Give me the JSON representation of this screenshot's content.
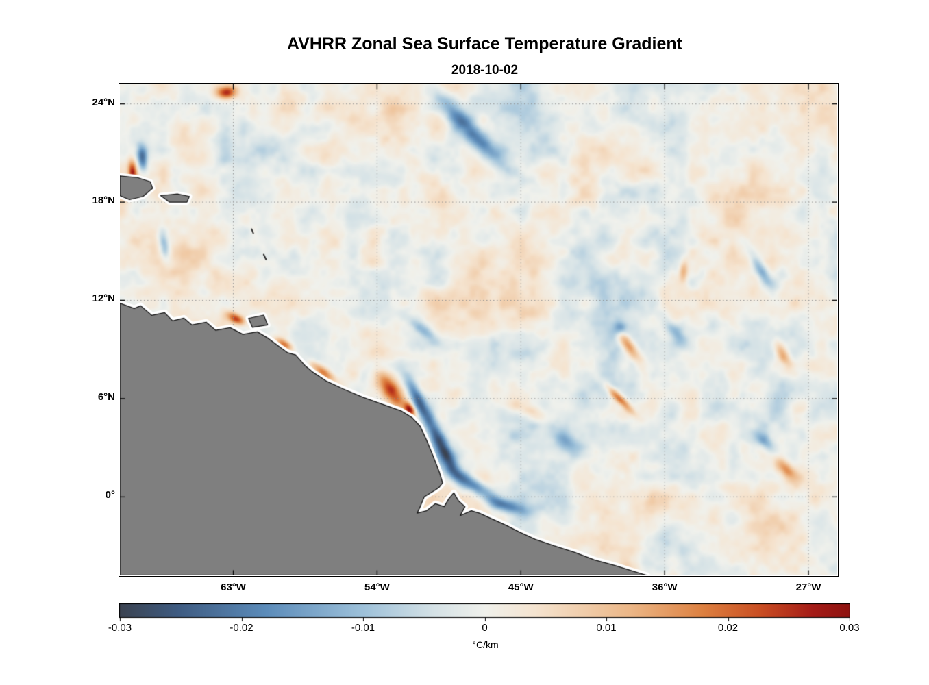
{
  "chart_data": {
    "type": "heatmap",
    "title": "AVHRR Zonal Sea Surface Temperature Gradient",
    "date": "2018-10-02",
    "xlabel": "",
    "ylabel": "",
    "x_range": [
      -70.1,
      -25.2
    ],
    "y_range": [
      -4.8,
      25.2
    ],
    "x_ticks": [
      {
        "label": "63°W",
        "lon": -63
      },
      {
        "label": "54°W",
        "lon": -54
      },
      {
        "label": "45°W",
        "lon": -45
      },
      {
        "label": "36°W",
        "lon": -36
      },
      {
        "label": "27°W",
        "lon": -27
      }
    ],
    "y_ticks": [
      {
        "label": "24°N",
        "lat": 24
      },
      {
        "label": "18°N",
        "lat": 18
      },
      {
        "label": "12°N",
        "lat": 12
      },
      {
        "label": "6°N",
        "lat": 6
      },
      {
        "label": "0°",
        "lat": 0
      }
    ],
    "grid": {
      "color": "#8f8f8f",
      "dash": [
        1.5,
        3.5
      ]
    },
    "colorbar": {
      "label": "°C/km",
      "min": -0.03,
      "max": 0.03,
      "ticks": [
        "-0.03",
        "-0.02",
        "-0.01",
        "0",
        "0.01",
        "0.02",
        "0.03"
      ],
      "stops": [
        [
          0.0,
          "#3b4351"
        ],
        [
          0.08,
          "#3f5c82"
        ],
        [
          0.2,
          "#5c8cba"
        ],
        [
          0.33,
          "#9cc0d9"
        ],
        [
          0.43,
          "#d5e2e6"
        ],
        [
          0.5,
          "#f0f1ec"
        ],
        [
          0.57,
          "#f5e4d0"
        ],
        [
          0.7,
          "#ecb787"
        ],
        [
          0.8,
          "#dd8040"
        ],
        [
          0.88,
          "#c94d22"
        ],
        [
          0.95,
          "#a51c18"
        ],
        [
          1.0,
          "#8f1310"
        ]
      ]
    },
    "description": "Mesoscale zonal SST gradient field over the western tropical Atlantic; near-zero mottled background with strong negative (blue) filament along the North Brazil Current retroflection and positive (orange/red) coastal patches; gray land mask of northeastern South America with white no-data coastal strip.",
    "noise": {
      "seed": 7,
      "octaves": [
        {
          "freq": 0.12,
          "amp": 0.0016
        },
        {
          "freq": 0.33,
          "amp": 0.0042
        },
        {
          "freq": 0.75,
          "amp": 0.0038
        },
        {
          "freq": 1.6,
          "amp": 0.0022
        },
        {
          "freq": 3.2,
          "amp": 0.0009
        }
      ]
    },
    "features": [
      {
        "lon": -51.43,
        "lat": 5.96,
        "amp": -0.022,
        "rx": 1.2,
        "ry": 0.28,
        "rot": -62
      },
      {
        "lon": -49.93,
        "lat": 3.04,
        "amp": -0.026,
        "rx": 1.4,
        "ry": 0.3,
        "rot": -63
      },
      {
        "lon": -48.0,
        "lat": 0.75,
        "amp": -0.022,
        "rx": 1.2,
        "ry": 0.3,
        "rot": -32
      },
      {
        "lon": -46.07,
        "lat": -0.5,
        "amp": -0.015,
        "rx": 1.0,
        "ry": 0.25,
        "rot": -15
      },
      {
        "lon": -53.06,
        "lat": 6.38,
        "amp": 0.024,
        "rx": 0.95,
        "ry": 0.38,
        "rot": -55
      },
      {
        "lon": -51.94,
        "lat": 5.33,
        "amp": 0.03,
        "rx": 0.32,
        "ry": 0.2,
        "rot": -55
      },
      {
        "lon": -57.43,
        "lat": 7.63,
        "amp": 0.02,
        "rx": 0.7,
        "ry": 0.22,
        "rot": -35
      },
      {
        "lon": -58.3,
        "lat": 7.0,
        "amp": -0.016,
        "rx": 0.55,
        "ry": 0.2,
        "rot": -35
      },
      {
        "lon": -48.2,
        "lat": 22.4,
        "amp": -0.02,
        "rx": 2.2,
        "ry": 0.4,
        "rot": -46
      },
      {
        "lon": -63.43,
        "lat": 24.7,
        "amp": 0.026,
        "rx": 0.45,
        "ry": 0.28,
        "rot": 0
      },
      {
        "lon": -68.7,
        "lat": 20.7,
        "amp": -0.022,
        "rx": 0.55,
        "ry": 0.22,
        "rot": 95
      },
      {
        "lon": -69.3,
        "lat": 19.8,
        "amp": 0.024,
        "rx": 0.5,
        "ry": 0.18,
        "rot": 95
      },
      {
        "lon": -67.6,
        "lat": 10.75,
        "amp": -0.02,
        "rx": 0.5,
        "ry": 0.18,
        "rot": -8
      },
      {
        "lon": -62.8,
        "lat": 10.85,
        "amp": 0.024,
        "rx": 0.4,
        "ry": 0.2,
        "rot": -25
      },
      {
        "lon": -38.23,
        "lat": 9.17,
        "amp": 0.021,
        "rx": 0.8,
        "ry": 0.26,
        "rot": -55
      },
      {
        "lon": -35.35,
        "lat": 10.1,
        "amp": -0.014,
        "rx": 0.7,
        "ry": 0.3,
        "rot": -50
      },
      {
        "lon": -38.8,
        "lat": 5.96,
        "amp": 0.02,
        "rx": 0.8,
        "ry": 0.18,
        "rot": -45
      },
      {
        "lon": -42.0,
        "lat": 3.25,
        "amp": -0.011,
        "rx": 0.9,
        "ry": 0.35,
        "rot": -30
      },
      {
        "lon": -30.0,
        "lat": 13.9,
        "amp": -0.014,
        "rx": 0.8,
        "ry": 0.25,
        "rot": -60
      },
      {
        "lon": -34.8,
        "lat": 13.75,
        "amp": 0.014,
        "rx": 0.5,
        "ry": 0.2,
        "rot": 85
      },
      {
        "lon": -28.6,
        "lat": 8.67,
        "amp": 0.015,
        "rx": 0.6,
        "ry": 0.25,
        "rot": -60
      },
      {
        "lon": -28.4,
        "lat": 1.67,
        "amp": 0.016,
        "rx": 0.7,
        "ry": 0.3,
        "rot": -45
      },
      {
        "lon": -29.7,
        "lat": 3.33,
        "amp": -0.012,
        "rx": 0.5,
        "ry": 0.25,
        "rot": -45
      },
      {
        "lon": -67.3,
        "lat": 15.3,
        "amp": -0.013,
        "rx": 0.7,
        "ry": 0.22,
        "rot": 100
      },
      {
        "lon": -51.0,
        "lat": 10.1,
        "amp": -0.013,
        "rx": 0.7,
        "ry": 0.25,
        "rot": -40
      },
      {
        "lon": -44.6,
        "lat": 5.33,
        "amp": 0.012,
        "rx": 0.9,
        "ry": 0.4,
        "rot": -20
      },
      {
        "lon": -38.8,
        "lat": 10.33,
        "amp": -0.016,
        "rx": 0.32,
        "ry": 0.3,
        "rot": 0
      },
      {
        "lon": -59.8,
        "lat": 9.3,
        "amp": 0.02,
        "rx": 0.4,
        "ry": 0.18,
        "rot": -30
      }
    ],
    "land": {
      "fill": "#7f7f7f",
      "outline": "#111111",
      "coast_halo": "#ffffff",
      "mainland": [
        [
          -70.1,
          11.83
        ],
        [
          -69.2,
          11.5
        ],
        [
          -68.8,
          11.67
        ],
        [
          -68.1,
          11.08
        ],
        [
          -67.3,
          11.25
        ],
        [
          -66.8,
          10.75
        ],
        [
          -66.1,
          10.92
        ],
        [
          -65.6,
          10.5
        ],
        [
          -64.7,
          10.67
        ],
        [
          -64.1,
          10.17
        ],
        [
          -63.2,
          10.33
        ],
        [
          -62.4,
          9.92
        ],
        [
          -61.5,
          10.08
        ],
        [
          -60.8,
          9.67
        ],
        [
          -60.1,
          9.15
        ],
        [
          -59.6,
          8.8
        ],
        [
          -59.1,
          8.67
        ],
        [
          -58.5,
          8.0
        ],
        [
          -58.0,
          7.6
        ],
        [
          -57.2,
          7.08
        ],
        [
          -56.1,
          6.58
        ],
        [
          -54.9,
          6.08
        ],
        [
          -53.7,
          5.67
        ],
        [
          -52.5,
          5.25
        ],
        [
          -51.8,
          4.83
        ],
        [
          -51.3,
          4.3
        ],
        [
          -50.9,
          3.45
        ],
        [
          -50.5,
          2.5
        ],
        [
          -50.1,
          1.5
        ],
        [
          -49.9,
          0.85
        ],
        [
          -50.1,
          0.6
        ],
        [
          -50.35,
          0.42
        ],
        [
          -51.05,
          0.0
        ],
        [
          -51.3,
          -0.6
        ],
        [
          -51.5,
          -1.0
        ],
        [
          -50.9,
          -0.85
        ],
        [
          -50.35,
          -0.42
        ],
        [
          -49.8,
          -0.6
        ],
        [
          -49.5,
          -0.1
        ],
        [
          -49.2,
          0.25
        ],
        [
          -48.9,
          -0.25
        ],
        [
          -48.5,
          -0.6
        ],
        [
          -48.8,
          -1.15
        ],
        [
          -48.1,
          -0.85
        ],
        [
          -47.6,
          -1.0
        ],
        [
          -46.8,
          -1.35
        ],
        [
          -45.9,
          -1.75
        ],
        [
          -45.1,
          -2.15
        ],
        [
          -44.1,
          -2.6
        ],
        [
          -42.9,
          -3.0
        ],
        [
          -41.6,
          -3.4
        ],
        [
          -40.4,
          -3.85
        ],
        [
          -39.1,
          -4.2
        ],
        [
          -37.8,
          -4.6
        ],
        [
          -37.1,
          -4.8
        ],
        [
          -70.1,
          -4.8
        ]
      ],
      "islands": [
        [
          [
            -70.1,
            19.6
          ],
          [
            -69.0,
            19.5
          ],
          [
            -68.2,
            19.25
          ],
          [
            -68.05,
            18.85
          ],
          [
            -68.65,
            18.35
          ],
          [
            -69.5,
            18.15
          ],
          [
            -70.1,
            18.4
          ]
        ],
        [
          [
            -67.55,
            18.4
          ],
          [
            -66.5,
            18.5
          ],
          [
            -65.75,
            18.35
          ],
          [
            -65.9,
            18.0
          ],
          [
            -67.0,
            18.0
          ]
        ],
        [
          [
            -62.05,
            10.9
          ],
          [
            -61.1,
            11.1
          ],
          [
            -60.85,
            10.5
          ],
          [
            -61.8,
            10.35
          ]
        ]
      ],
      "island_marks": [
        [
          [
            -61.85,
            16.35
          ],
          [
            -61.75,
            16.1
          ]
        ],
        [
          [
            -61.1,
            14.8
          ],
          [
            -60.95,
            14.5
          ]
        ]
      ]
    }
  }
}
